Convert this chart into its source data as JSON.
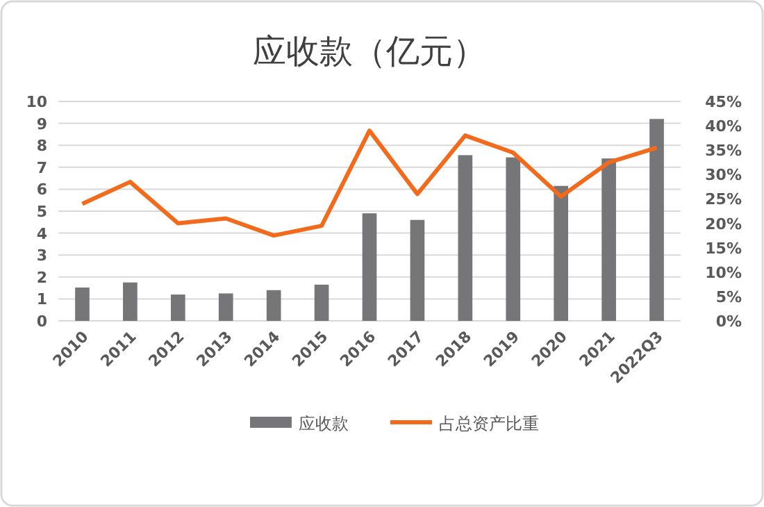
{
  "chart_data": {
    "type": "bar",
    "title": "应收款（亿元）",
    "categories": [
      "2010",
      "2011",
      "2012",
      "2013",
      "2014",
      "2015",
      "2016",
      "2017",
      "2018",
      "2019",
      "2020",
      "2021",
      "2022Q3"
    ],
    "series": [
      {
        "name": "应收款",
        "color": "#767679",
        "values": [
          1.52,
          1.75,
          1.2,
          1.25,
          1.4,
          1.65,
          4.9,
          4.6,
          7.55,
          7.45,
          6.15,
          7.4,
          9.2
        ]
      },
      {
        "name": "占总资产比重",
        "type": "line",
        "axis": "y2",
        "color": "#f26b1d",
        "values": [
          24,
          28.5,
          20,
          21,
          17.5,
          19.5,
          39,
          26,
          38,
          34.5,
          25.5,
          32.5,
          35.5
        ]
      }
    ],
    "ylim": [
      0,
      10
    ],
    "yticks": [
      0,
      1,
      2,
      3,
      4,
      5,
      6,
      7,
      8,
      9,
      10
    ],
    "y2lim": [
      0,
      45
    ],
    "y2ticks": [
      {
        "value": 0,
        "label": "0%"
      },
      {
        "value": 5,
        "label": "5%"
      },
      {
        "value": 10,
        "label": "10%"
      },
      {
        "value": 15,
        "label": "15%"
      },
      {
        "value": 20,
        "label": "20%"
      },
      {
        "value": 25,
        "label": "25%"
      },
      {
        "value": 30,
        "label": "30%"
      },
      {
        "value": 35,
        "label": "35%"
      },
      {
        "value": 40,
        "label": "40%"
      },
      {
        "value": 45,
        "label": "45%"
      }
    ],
    "grid": "y",
    "legend": "bottom",
    "marker": "none",
    "line_style": "solid"
  }
}
